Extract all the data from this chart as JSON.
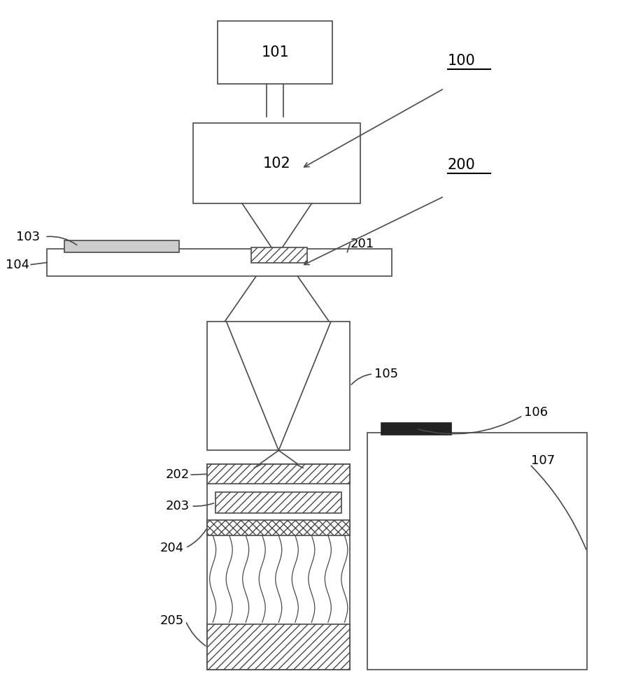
{
  "bg_color": "#ffffff",
  "line_color": "#4a4a4a",
  "lw": 1.2,
  "font_size_label": 13,
  "font_size_ref": 14,
  "fig_w": 8.89,
  "fig_h": 10.0
}
